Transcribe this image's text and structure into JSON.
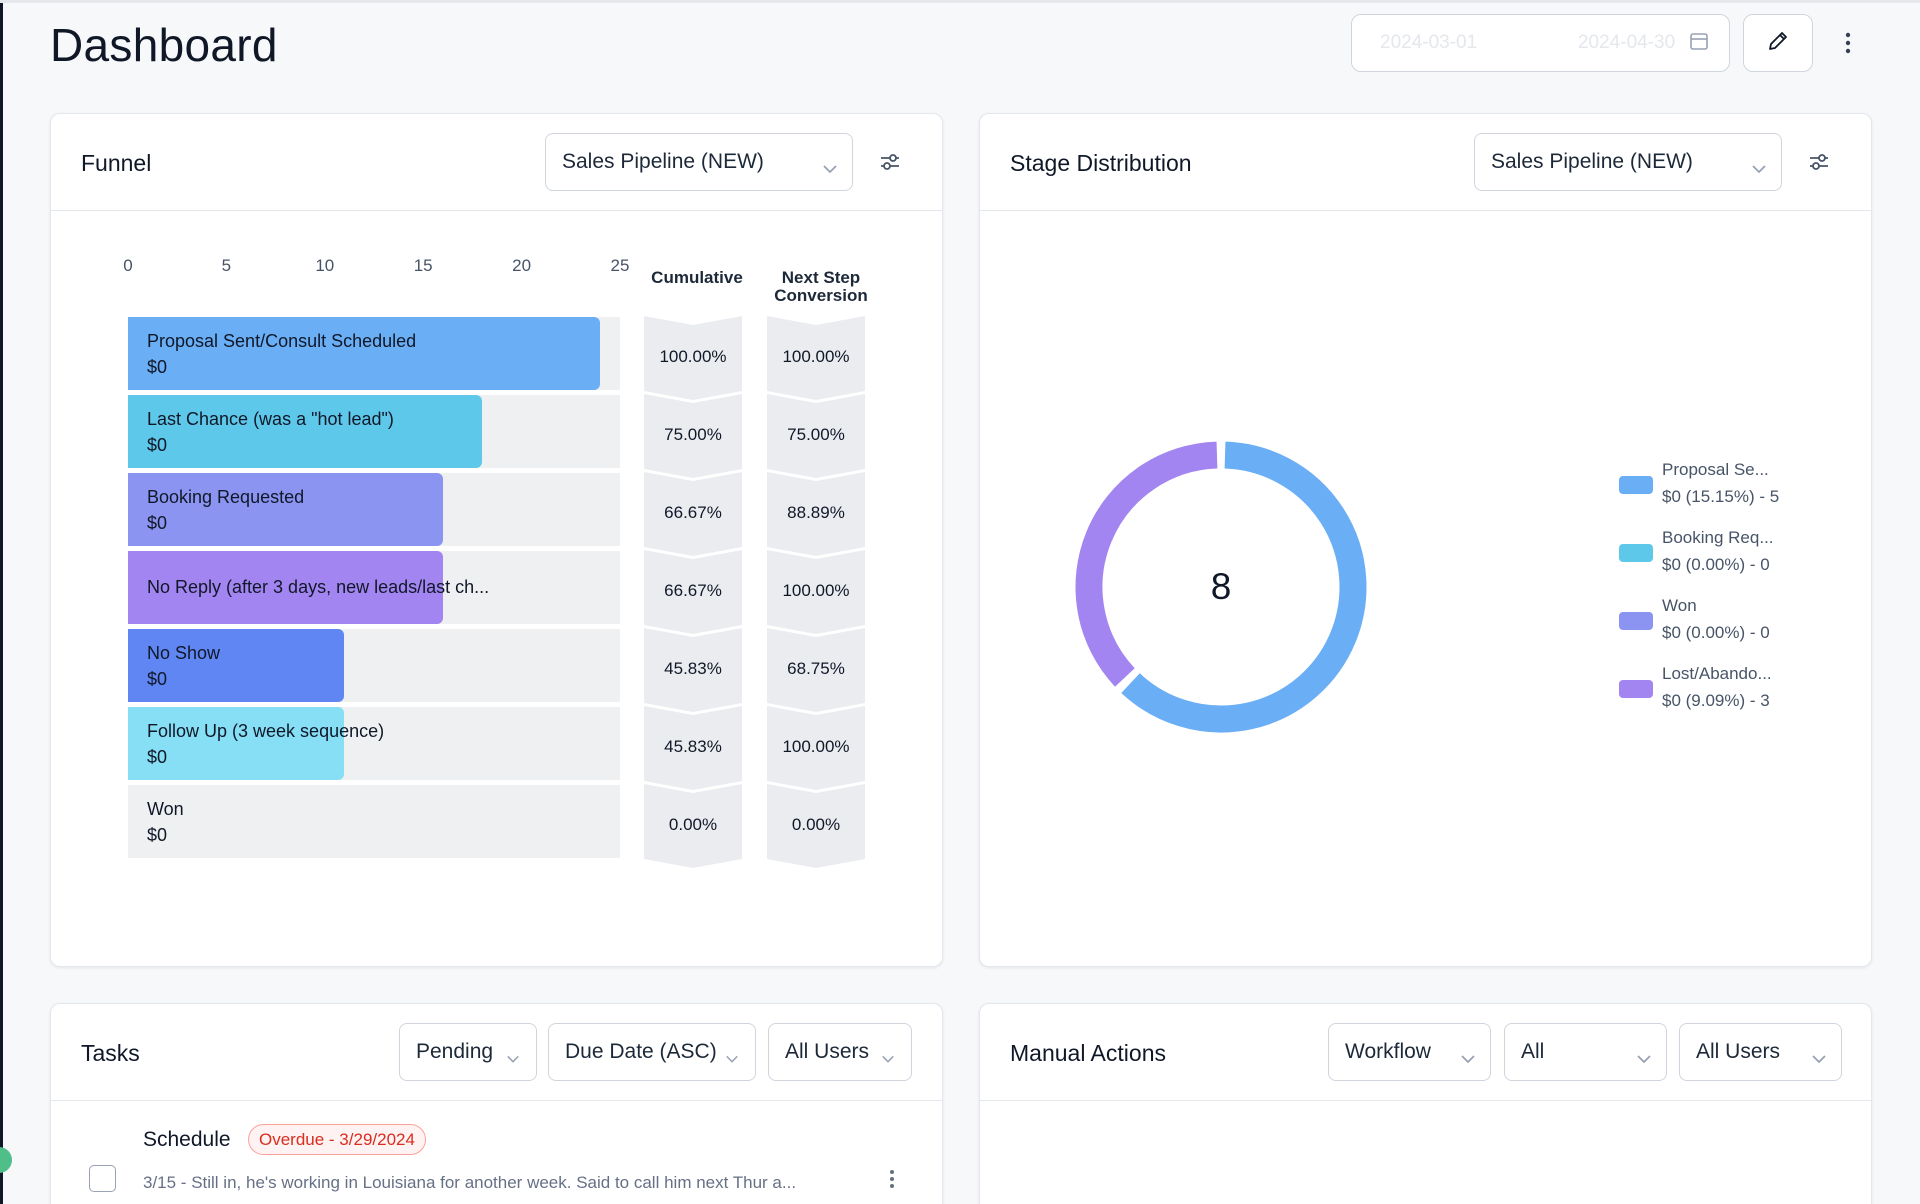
{
  "header": {
    "title": "Dashboard",
    "date_start": "2024-03-01",
    "date_end": "2024-04-30"
  },
  "funnel": {
    "title": "Funnel",
    "pipeline": "Sales Pipeline (NEW)",
    "col_cumulative": "Cumulative",
    "col_next_1": "Next Step",
    "col_next_2": "Conversion",
    "axis_ticks": [
      "0",
      "5",
      "10",
      "15",
      "20",
      "25"
    ],
    "stages": [
      {
        "name": "Proposal Sent/Consult Scheduled",
        "value": "$0",
        "count": 24,
        "color": "#6aaef5",
        "cumulative": "100.00%",
        "next": "100.00%"
      },
      {
        "name": "Last Chance (was a \"hot lead\")",
        "value": "$0",
        "count": 18,
        "color": "#5ec8ea",
        "cumulative": "75.00%",
        "next": "75.00%"
      },
      {
        "name": "Booking Requested",
        "value": "$0",
        "count": 16,
        "color": "#8b95f1",
        "cumulative": "66.67%",
        "next": "88.89%"
      },
      {
        "name": "No Reply (after 3 days, new leads/last ch...",
        "value": "",
        "count": 16,
        "color": "#a385f1",
        "cumulative": "66.67%",
        "next": "100.00%"
      },
      {
        "name": "No Show",
        "value": "$0",
        "count": 11,
        "color": "#5f86f2",
        "cumulative": "45.83%",
        "next": "68.75%"
      },
      {
        "name": "Follow Up (3 week sequence)",
        "value": "$0",
        "count": 11,
        "color": "#86dff4",
        "cumulative": "45.83%",
        "next": "100.00%"
      },
      {
        "name": "Won",
        "value": "$0",
        "count": 0,
        "color": "#eff0f2",
        "cumulative": "0.00%",
        "next": "0.00%"
      }
    ]
  },
  "stage_distribution": {
    "title": "Stage Distribution",
    "pipeline": "Sales Pipeline (NEW)",
    "total": "8",
    "legend": [
      {
        "name": "Proposal Se...",
        "detail": "$0 (15.15%) - 5",
        "color": "#6aaef5"
      },
      {
        "name": "Booking Req...",
        "detail": "$0 (0.00%) - 0",
        "color": "#5ec8ea"
      },
      {
        "name": "Won",
        "detail": "$0 (0.00%) - 0",
        "color": "#8b95f1"
      },
      {
        "name": "Lost/Abando...",
        "detail": "$0 (9.09%) - 3",
        "color": "#a385f1"
      }
    ]
  },
  "chart_data": {
    "type": "pie",
    "title": "Stage Distribution",
    "center_label": "8",
    "slices": [
      {
        "label": "Proposal Se...",
        "value": 5,
        "color": "#6aaef5"
      },
      {
        "label": "Booking Req...",
        "value": 0,
        "color": "#5ec8ea"
      },
      {
        "label": "Won",
        "value": 0,
        "color": "#8b95f1"
      },
      {
        "label": "Lost/Abando...",
        "value": 3,
        "color": "#a385f1"
      }
    ]
  },
  "tasks": {
    "title": "Tasks",
    "status_filter": "Pending",
    "sort_filter": "Due Date (ASC)",
    "user_filter": "All Users",
    "items": [
      {
        "title": "Schedule",
        "badge": "Overdue - 3/29/2024",
        "desc": "3/15 - Still in, he's working in Louisiana for another week. Said to call him next Thur a..."
      }
    ]
  },
  "manual_actions": {
    "title": "Manual Actions",
    "type_filter": "Workflow",
    "scope_filter": "All",
    "user_filter": "All Users"
  }
}
